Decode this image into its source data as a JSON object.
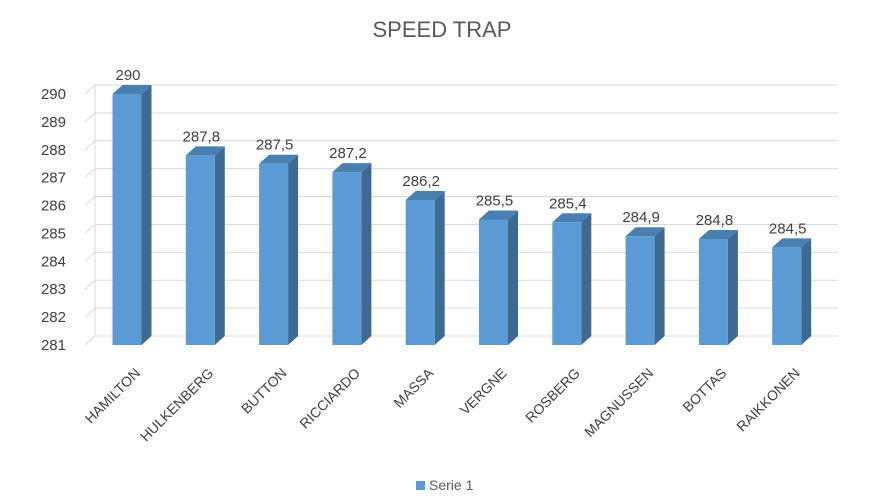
{
  "chart_data": {
    "type": "bar",
    "title": "SPEED TRAP",
    "categories": [
      "HAMILTON",
      "HULKENBERG",
      "BUTTON",
      "RICCIARDO",
      "MASSA",
      "VERGNE",
      "ROSBERG",
      "MAGNUSSEN",
      "BOTTAS",
      "RAIKKONEN"
    ],
    "series": [
      {
        "name": "Serie 1",
        "values": [
          290,
          287.8,
          287.5,
          287.2,
          286.2,
          285.5,
          285.4,
          284.9,
          284.8,
          284.5
        ],
        "value_labels": [
          "290",
          "287,8",
          "287,5",
          "287,2",
          "286,2",
          "285,5",
          "285,4",
          "284,9",
          "284,8",
          "284,5"
        ]
      }
    ],
    "ylim": [
      281,
      290
    ],
    "yticks": [
      "281",
      "282",
      "283",
      "284",
      "285",
      "286",
      "287",
      "288",
      "289",
      "290"
    ],
    "grid": true,
    "legend": "bottom",
    "colors": {
      "front": "#5b9bd5",
      "side": "#3d6a93",
      "top": "#4a7fb0",
      "grid": "#d9d9d9"
    }
  }
}
